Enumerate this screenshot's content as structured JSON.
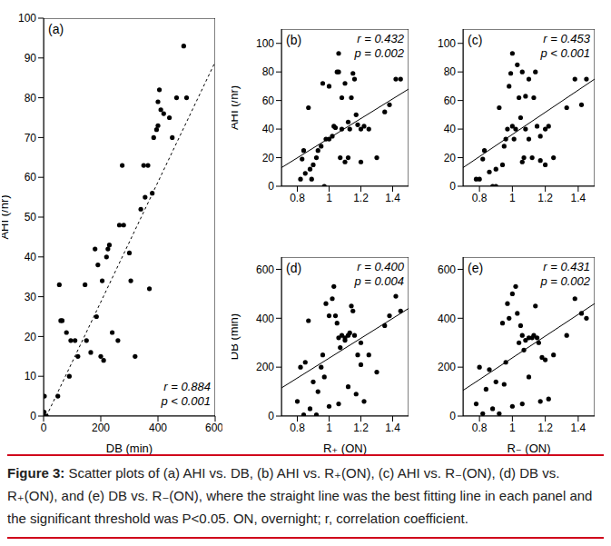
{
  "chart_data": [
    {
      "type": "scatter",
      "title": "(a)",
      "x_label": "DB (min)",
      "y_label": "AHI (/hr)",
      "annotations": [
        "r = 0.884",
        "p < 0.001"
      ],
      "xlim": [
        0,
        600
      ],
      "xticks": [
        0,
        200,
        400,
        600
      ],
      "ylim": [
        0,
        100
      ],
      "yticks": [
        0,
        10,
        20,
        30,
        40,
        50,
        60,
        70,
        80,
        90,
        100
      ],
      "series": [
        {
          "type": "scatter",
          "marker": "circle",
          "color": "#000000",
          "x": [
            0,
            2,
            3,
            10,
            50,
            55,
            60,
            65,
            80,
            90,
            95,
            110,
            120,
            145,
            150,
            165,
            180,
            185,
            190,
            200,
            205,
            210,
            220,
            225,
            230,
            240,
            260,
            265,
            275,
            280,
            300,
            305,
            320,
            340,
            350,
            355,
            365,
            370,
            380,
            385,
            395,
            400,
            400,
            405,
            410,
            420,
            440,
            450,
            465,
            490,
            500
          ],
          "values": [
            0,
            1,
            5,
            0,
            5,
            33,
            24,
            24,
            21,
            10,
            19,
            19,
            15,
            33,
            19,
            16,
            42,
            25,
            38,
            15,
            34,
            14,
            40,
            42,
            43,
            21,
            19,
            48,
            63,
            48,
            41,
            34,
            15,
            52,
            63,
            55,
            63,
            32,
            56,
            70,
            72,
            73,
            79,
            82,
            77,
            76,
            75,
            70,
            80,
            93,
            80
          ]
        },
        {
          "type": "line",
          "line_style": "dashed",
          "color": "#000000",
          "x": [
            10,
            600
          ],
          "values": [
            0,
            89
          ]
        }
      ]
    },
    {
      "type": "scatter",
      "title": "(b)",
      "y_label": "AHI (/hr)",
      "annotations": [
        "r = 0.432",
        "p = 0.002"
      ],
      "xlim": [
        0.7,
        1.5
      ],
      "xticks": [
        0.8,
        1,
        1.2,
        1.4
      ],
      "ylim": [
        0,
        110
      ],
      "yticks": [
        0,
        20,
        40,
        60,
        80,
        100
      ],
      "series": [
        {
          "type": "scatter",
          "marker": "circle",
          "color": "#000000",
          "x": [
            0.82,
            0.83,
            0.84,
            0.85,
            0.87,
            0.88,
            0.89,
            0.9,
            0.92,
            0.93,
            0.95,
            0.96,
            0.97,
            0.98,
            1.0,
            1.0,
            1.02,
            1.03,
            1.04,
            1.05,
            1.06,
            1.06,
            1.07,
            1.08,
            1.08,
            1.1,
            1.1,
            1.12,
            1.12,
            1.13,
            1.14,
            1.15,
            1.16,
            1.17,
            1.18,
            1.2,
            1.2,
            1.22,
            1.25,
            1.3,
            1.35,
            1.38,
            1.42,
            1.45
          ],
          "values": [
            5,
            19,
            25,
            9,
            55,
            12,
            5,
            15,
            20,
            25,
            28,
            72,
            0,
            33,
            70,
            33,
            35,
            42,
            41,
            80,
            93,
            80,
            20,
            62,
            40,
            72,
            17,
            45,
            20,
            40,
            62,
            79,
            75,
            50,
            43,
            17,
            40,
            42,
            40,
            20,
            52,
            57,
            75,
            75
          ]
        },
        {
          "type": "line",
          "line_style": "solid",
          "color": "#000000",
          "x": [
            0.7,
            1.5
          ],
          "values": [
            13,
            68
          ]
        }
      ]
    },
    {
      "type": "scatter",
      "title": "(c)",
      "annotations": [
        "r = 0.453",
        "p < 0.001"
      ],
      "xlim": [
        0.7,
        1.5
      ],
      "xticks": [
        0.8,
        1,
        1.2,
        1.4
      ],
      "ylim": [
        0,
        110
      ],
      "yticks": [
        0,
        20,
        40,
        60,
        80,
        100
      ],
      "series": [
        {
          "type": "scatter",
          "marker": "circle",
          "color": "#000000",
          "x": [
            0.78,
            0.8,
            0.82,
            0.83,
            0.86,
            0.88,
            0.9,
            0.9,
            0.92,
            0.94,
            0.95,
            0.96,
            0.97,
            0.98,
            0.99,
            1.0,
            1.0,
            1.01,
            1.02,
            1.03,
            1.04,
            1.05,
            1.06,
            1.06,
            1.07,
            1.08,
            1.08,
            1.1,
            1.1,
            1.12,
            1.13,
            1.14,
            1.15,
            1.17,
            1.17,
            1.2,
            1.2,
            1.22,
            1.25,
            1.33,
            1.38,
            1.42,
            1.45
          ],
          "values": [
            5,
            5,
            19,
            25,
            10,
            0,
            0,
            12,
            55,
            15,
            28,
            33,
            40,
            70,
            79,
            93,
            42,
            33,
            40,
            85,
            62,
            48,
            80,
            17,
            20,
            63,
            40,
            75,
            33,
            20,
            62,
            80,
            42,
            35,
            18,
            40,
            15,
            42,
            20,
            55,
            75,
            57,
            75
          ]
        },
        {
          "type": "line",
          "line_style": "solid",
          "color": "#000000",
          "x": [
            0.7,
            1.5
          ],
          "values": [
            13,
            75
          ]
        }
      ]
    },
    {
      "type": "scatter",
      "title": "(d)",
      "x_label": "R₊ (ON)",
      "y_label": "DB (min)",
      "annotations": [
        "r = 0.400",
        "p = 0.004"
      ],
      "xlim": [
        0.7,
        1.5
      ],
      "xticks": [
        0.8,
        1,
        1.2,
        1.4
      ],
      "ylim": [
        0,
        650
      ],
      "yticks": [
        0,
        200,
        400,
        600
      ],
      "series": [
        {
          "type": "scatter",
          "marker": "circle",
          "color": "#000000",
          "x": [
            0.8,
            0.82,
            0.84,
            0.85,
            0.87,
            0.88,
            0.9,
            0.92,
            0.93,
            0.95,
            0.96,
            0.97,
            0.98,
            1.0,
            1.0,
            1.02,
            1.03,
            1.04,
            1.05,
            1.06,
            1.06,
            1.07,
            1.08,
            1.1,
            1.1,
            1.12,
            1.12,
            1.13,
            1.14,
            1.15,
            1.16,
            1.17,
            1.18,
            1.2,
            1.2,
            1.22,
            1.25,
            1.3,
            1.35,
            1.38,
            1.42,
            1.45
          ],
          "values": [
            60,
            200,
            5,
            220,
            390,
            30,
            140,
            5,
            100,
            200,
            250,
            160,
            460,
            410,
            40,
            480,
            530,
            410,
            380,
            50,
            320,
            280,
            330,
            310,
            320,
            120,
            330,
            340,
            450,
            430,
            330,
            90,
            250,
            300,
            210,
            60,
            250,
            180,
            370,
            410,
            490,
            430
          ]
        },
        {
          "type": "line",
          "line_style": "solid",
          "color": "#000000",
          "x": [
            0.7,
            1.5
          ],
          "values": [
            115,
            440
          ]
        }
      ]
    },
    {
      "type": "scatter",
      "title": "(e)",
      "x_label": "R₋ (ON)",
      "annotations": [
        "r = 0.431",
        "p = 0.002"
      ],
      "xlim": [
        0.7,
        1.5
      ],
      "xticks": [
        0.8,
        1,
        1.2,
        1.4
      ],
      "ylim": [
        0,
        650
      ],
      "yticks": [
        0,
        200,
        400,
        600
      ],
      "series": [
        {
          "type": "scatter",
          "marker": "circle",
          "color": "#000000",
          "x": [
            0.78,
            0.8,
            0.82,
            0.84,
            0.86,
            0.88,
            0.9,
            0.92,
            0.94,
            0.95,
            0.96,
            0.97,
            0.98,
            1.0,
            1.0,
            1.02,
            1.03,
            1.04,
            1.05,
            1.06,
            1.06,
            1.07,
            1.08,
            1.1,
            1.1,
            1.12,
            1.13,
            1.14,
            1.15,
            1.16,
            1.17,
            1.18,
            1.2,
            1.22,
            1.25,
            1.33,
            1.38,
            1.42,
            1.45
          ],
          "values": [
            50,
            200,
            10,
            110,
            190,
            30,
            140,
            10,
            380,
            130,
            220,
            460,
            400,
            500,
            40,
            530,
            420,
            300,
            370,
            50,
            330,
            270,
            310,
            320,
            160,
            320,
            330,
            450,
            320,
            300,
            60,
            240,
            230,
            70,
            250,
            330,
            480,
            420,
            400
          ]
        },
        {
          "type": "line",
          "line_style": "solid",
          "color": "#000000",
          "x": [
            0.7,
            1.5
          ],
          "values": [
            105,
            460
          ]
        }
      ]
    }
  ],
  "caption": {
    "label": "Figure 3:",
    "text": "Scatter plots of (a) AHI vs. DB, (b) AHI vs. R₊(ON), (c) AHI vs. R₋(ON), (d) DB vs. R₊(ON), and (e) DB vs. R₋(ON), where the straight line was the best fitting line in each panel and the significant threshold was P<0.05. ON, overnight; r, correlation coefficient."
  }
}
